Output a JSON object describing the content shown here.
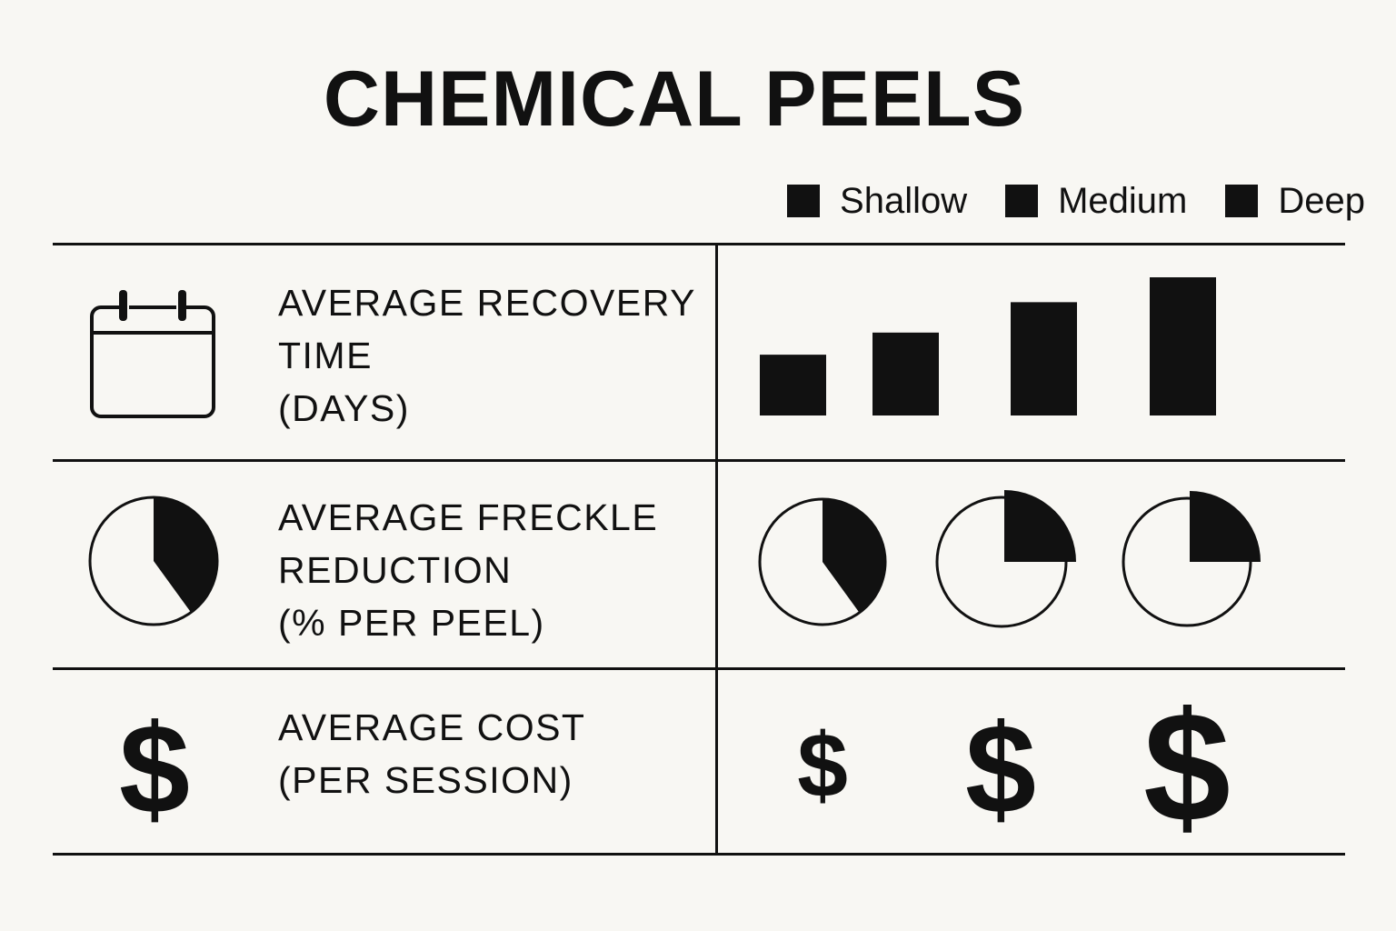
{
  "title": "CHEMICAL PEELS",
  "legend": [
    "Shallow",
    "Medium",
    "Deep"
  ],
  "rows": [
    {
      "label": "AVERAGE RECOVERY\nTIME\n(DAYS)",
      "icon": "calendar-icon"
    },
    {
      "label": "AVERAGE FRECKLE\nREDUCTION\n(% PER PEEL)",
      "icon": "pie-icon"
    },
    {
      "label": "AVERAGE COST\n(PER SESSION)",
      "icon": "dollar-icon"
    }
  ],
  "dollar_symbol": "$",
  "colors": {
    "ink": "#111111",
    "background": "#f8f7f3"
  },
  "chart_data": [
    {
      "type": "bar",
      "title": "AVERAGE RECOVERY TIME (DAYS)",
      "values": [
        2.2,
        3.0,
        4.1,
        5.0
      ]
    },
    {
      "type": "pie",
      "title": "AVERAGE FRECKLE REDUCTION (% PER PEEL)",
      "series": [
        {
          "name": "Shallow",
          "values": [
            40
          ]
        },
        {
          "name": "Medium",
          "values": [
            25
          ]
        },
        {
          "name": "Deep",
          "values": [
            25
          ]
        }
      ]
    },
    {
      "type": "table",
      "title": "AVERAGE COST (PER SESSION)",
      "series": [
        {
          "name": "Shallow",
          "values": [
            1
          ]
        },
        {
          "name": "Medium",
          "values": [
            2
          ]
        },
        {
          "name": "Deep",
          "values": [
            3
          ]
        }
      ]
    }
  ]
}
